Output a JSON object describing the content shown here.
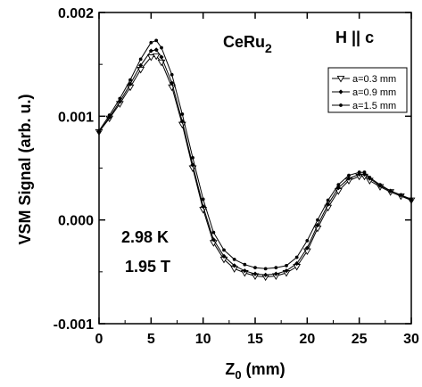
{
  "chart_data": {
    "type": "line",
    "title": "",
    "xlabel_main": "Z",
    "xlabel_sub": "0",
    "xlabel_tail": " (mm)",
    "ylabel": "VSM Signal (arb. u.)",
    "xlim": [
      0,
      30
    ],
    "ylim": [
      -0.001,
      0.002
    ],
    "x_ticks": [
      0,
      5,
      10,
      15,
      20,
      25,
      30
    ],
    "x_tick_labels": [
      "0",
      "5",
      "10",
      "15",
      "20",
      "25",
      "30"
    ],
    "y_ticks": [
      -0.001,
      0.0,
      0.001,
      0.002
    ],
    "y_tick_labels": [
      "-0.001",
      "0.000",
      "0.001",
      "0.002"
    ],
    "grid": false,
    "legend_position": "top-right",
    "annotations": {
      "sample_main": "CeRu",
      "sample_sub": "2",
      "field_dir": "H || c",
      "temperature": "2.98 K",
      "field": "1.95 T"
    },
    "series": [
      {
        "name": "a=0.3 mm",
        "marker": "triangle-down-open",
        "x": [
          0,
          1,
          2,
          3,
          4,
          5,
          5.5,
          6,
          7,
          8,
          9,
          10,
          11,
          12,
          13,
          14,
          15,
          16,
          17,
          18,
          19,
          20,
          21,
          22,
          23,
          24,
          25,
          25.5,
          26,
          27,
          28,
          29,
          30
        ],
        "y": [
          0.00085,
          0.00098,
          0.00112,
          0.00128,
          0.00145,
          0.00157,
          0.00158,
          0.00152,
          0.00128,
          0.00092,
          0.0005,
          0.0001,
          -0.00022,
          -0.00038,
          -0.00047,
          -0.00051,
          -0.00054,
          -0.00055,
          -0.00054,
          -0.00051,
          -0.00045,
          -0.0003,
          -8e-05,
          0.00012,
          0.00028,
          0.00038,
          0.00042,
          0.00042,
          0.00038,
          0.00032,
          0.00027,
          0.00023,
          0.00019
        ]
      },
      {
        "name": "a=0.9 mm",
        "marker": "diamond-small",
        "x": [
          0,
          1,
          2,
          3,
          4,
          5,
          5.5,
          6,
          7,
          8,
          9,
          10,
          11,
          12,
          13,
          14,
          15,
          16,
          17,
          18,
          19,
          20,
          21,
          22,
          23,
          24,
          25,
          25.5,
          26,
          27,
          28,
          29,
          30
        ],
        "y": [
          0.00085,
          0.00099,
          0.00114,
          0.00131,
          0.00149,
          0.00163,
          0.00164,
          0.00157,
          0.00132,
          0.00095,
          0.00053,
          0.00013,
          -0.00019,
          -0.00035,
          -0.00044,
          -0.00049,
          -0.00052,
          -0.00053,
          -0.00052,
          -0.00049,
          -0.00042,
          -0.00027,
          -5e-05,
          0.00015,
          0.00031,
          0.0004,
          0.00044,
          0.00044,
          0.0004,
          0.00033,
          0.00028,
          0.00024,
          0.00019
        ]
      },
      {
        "name": "a=1.5 mm",
        "marker": "dot-small",
        "x": [
          0,
          1,
          2,
          3,
          4,
          5,
          5.5,
          6,
          7,
          8,
          9,
          10,
          11,
          12,
          13,
          14,
          15,
          16,
          17,
          18,
          19,
          20,
          21,
          22,
          23,
          24,
          25,
          25.5,
          26,
          27,
          28,
          29,
          30
        ],
        "y": [
          0.00086,
          0.00101,
          0.00117,
          0.00135,
          0.00155,
          0.00171,
          0.00173,
          0.00166,
          0.0014,
          0.00102,
          0.0006,
          0.0002,
          -0.00012,
          -0.00029,
          -0.00038,
          -0.00043,
          -0.00046,
          -0.00047,
          -0.00046,
          -0.00044,
          -0.00036,
          -0.0002,
          0.0,
          0.00019,
          0.00034,
          0.00043,
          0.00046,
          0.00046,
          0.00041,
          0.00034,
          0.00028,
          0.00024,
          0.0002
        ]
      }
    ]
  }
}
